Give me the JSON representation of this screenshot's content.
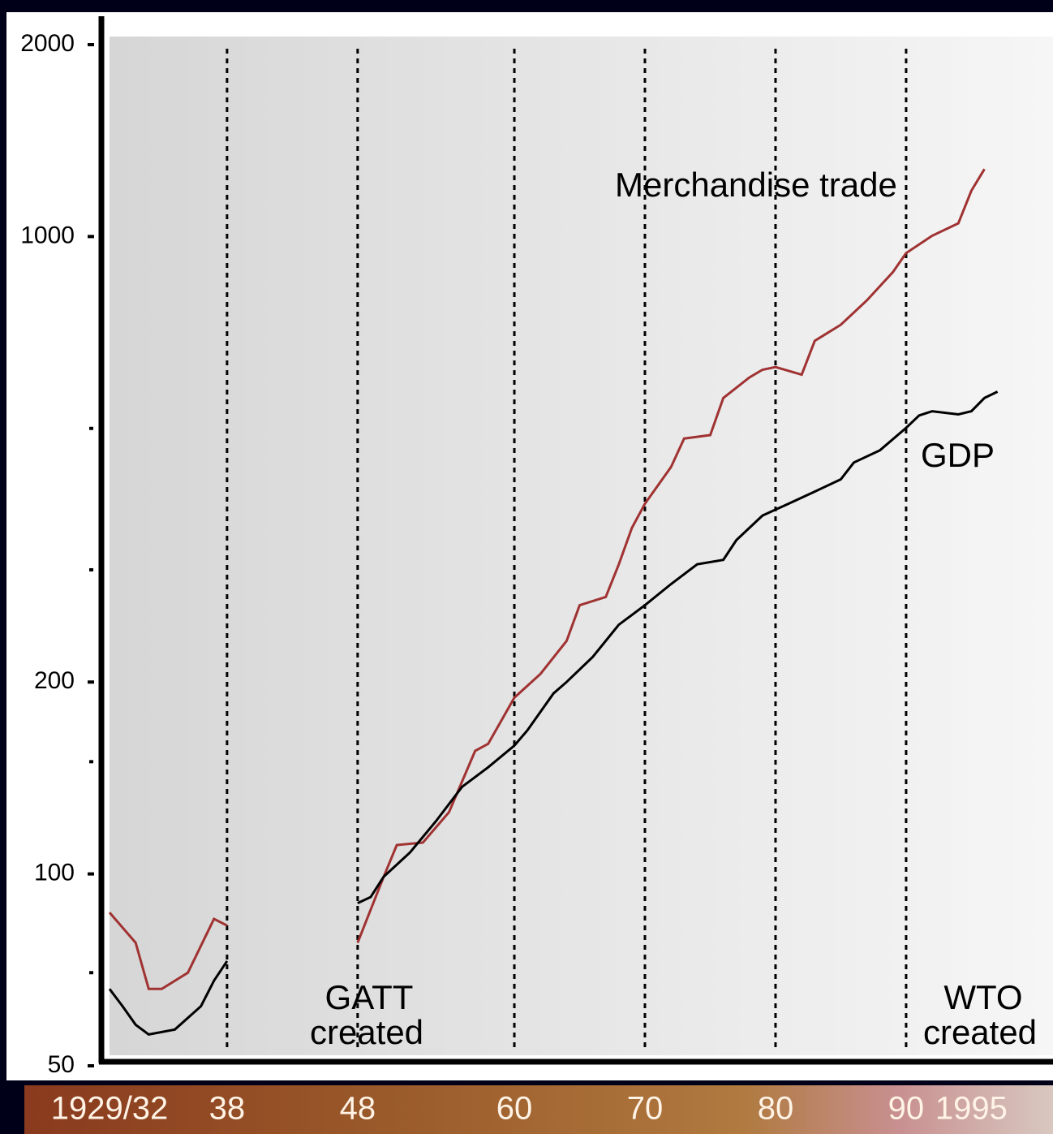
{
  "chart_data": {
    "type": "line",
    "log_y": true,
    "ylim": [
      50,
      2000
    ],
    "yticks": [
      50,
      100,
      200,
      1000,
      2000
    ],
    "yminor": [
      70,
      150,
      300,
      500
    ],
    "xlim": [
      1929,
      2001
    ],
    "xticks": [
      {
        "value": 1929,
        "label": "1929/32"
      },
      {
        "value": 1938,
        "label": "38"
      },
      {
        "value": 1948,
        "label": "48"
      },
      {
        "value": 1960,
        "label": "60"
      },
      {
        "value": 1970,
        "label": "70"
      },
      {
        "value": 1980,
        "label": "80"
      },
      {
        "value": 1990,
        "label": "90"
      },
      {
        "value": 1995,
        "label": "1995"
      }
    ],
    "event_lines": [
      1938,
      1948,
      1960,
      1970,
      1980,
      1990
    ],
    "series": [
      {
        "name": "Merchandise trade",
        "color": "#a03232",
        "x": [
          1929,
          1931,
          1932,
          1933,
          1935,
          1937,
          1938,
          1943,
          1948,
          1950,
          1951,
          1953,
          1955,
          1957,
          1958,
          1960,
          1962,
          1964,
          1965,
          1967,
          1968,
          1969,
          1970,
          1972,
          1973,
          1975,
          1976,
          1978,
          1979,
          1980,
          1982,
          1983,
          1985,
          1987,
          1989,
          1990,
          1992,
          1994,
          1995,
          1996
        ],
        "values": [
          87,
          78,
          66,
          66,
          70,
          85,
          83,
          null,
          78,
          99,
          111,
          112,
          125,
          156,
          160,
          189,
          206,
          232,
          264,
          272,
          306,
          349,
          381,
          435,
          482,
          488,
          558,
          601,
          618,
          624,
          607,
          686,
          727,
          794,
          880,
          942,
          1003,
          1049,
          1180,
          1276
        ]
      },
      {
        "name": "GDP",
        "color": "#000000",
        "x": [
          1929,
          1930,
          1931,
          1932,
          1934,
          1936,
          1937,
          1938,
          1943,
          1948,
          1949,
          1950,
          1952,
          1954,
          1956,
          1958,
          1960,
          1961,
          1963,
          1964,
          1966,
          1968,
          1970,
          1972,
          1974,
          1976,
          1977,
          1979,
          1981,
          1983,
          1985,
          1986,
          1988,
          1990,
          1991,
          1992,
          1994,
          1995,
          1996,
          1997
        ],
        "values": [
          66,
          62,
          58,
          56,
          57,
          62,
          68,
          73,
          null,
          90,
          92,
          99,
          108,
          121,
          137,
          147,
          159,
          168,
          192,
          200,
          219,
          246,
          264,
          285,
          306,
          311,
          334,
          365,
          381,
          398,
          416,
          442,
          462,
          501,
          524,
          532,
          526,
          532,
          558,
          571
        ]
      }
    ],
    "annotations": {
      "trade": "Merchandise trade",
      "gdp": "GDP",
      "gatt": [
        "GATT",
        "created"
      ],
      "wto": [
        "WTO",
        "created"
      ]
    }
  }
}
